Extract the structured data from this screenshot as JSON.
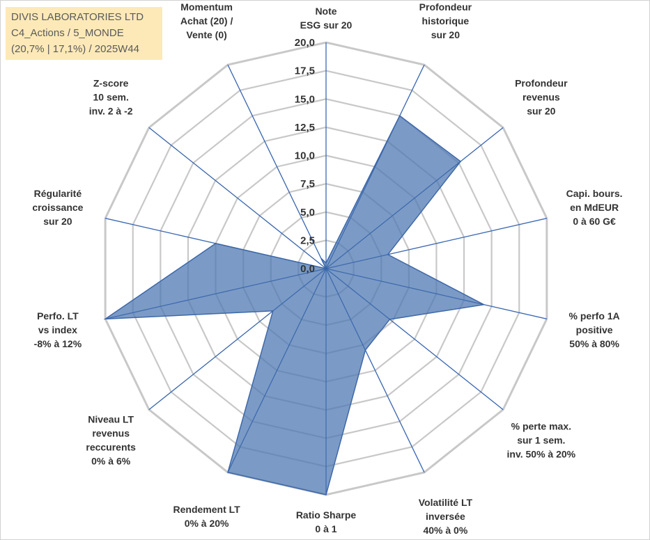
{
  "header": {
    "line1": "DIVIS LABORATORIES LTD",
    "line2": "C4_Actions / 5_MONDE",
    "line3": "(20,7% | 17,1%) / 2025W44"
  },
  "chart_data": {
    "type": "radar",
    "title": "DIVIS LABORATORIES LTD",
    "rmin": 0,
    "rmax": 20,
    "ticks": [
      "0,0",
      "2,5",
      "5,0",
      "7,5",
      "10,0",
      "12,5",
      "15,0",
      "17,5",
      "20,0"
    ],
    "axes": [
      {
        "label": [
          "Note",
          "ESG sur 20"
        ],
        "value": 0.5
      },
      {
        "label": [
          "Profondeur",
          "historique",
          "sur 20"
        ],
        "value": 15.0
      },
      {
        "label": [
          "Profondeur",
          "revenus",
          "sur 20"
        ],
        "value": 15.2
      },
      {
        "label": [
          "Capi. bours.",
          "en MdEUR",
          "0 à 60 G€"
        ],
        "value": 5.6
      },
      {
        "label": [
          "% perfo 1A",
          "positive",
          "50% à 80%"
        ],
        "value": 14.3
      },
      {
        "label": [
          "% perte max.",
          "sur 1 sem.",
          "inv. 50% à 20%"
        ],
        "value": 7.2
      },
      {
        "label": [
          "Volatilité LT",
          "inversée",
          "40% à 0%"
        ],
        "value": 8.0
      },
      {
        "label": [
          "Ratio Sharpe",
          "0 à 1"
        ],
        "value": 20.0
      },
      {
        "label": [
          "Rendement LT",
          "0% à 20%"
        ],
        "value": 20.0
      },
      {
        "label": [
          "Niveau LT",
          "revenus",
          "reccurents",
          "0% à 6%"
        ],
        "value": 6.0
      },
      {
        "label": [
          "Perfo. LT",
          "vs index",
          "-8% à 12%"
        ],
        "value": 20.0
      },
      {
        "label": [
          "Régularité",
          "croissance",
          "sur 20"
        ],
        "value": 10.0
      },
      {
        "label": [
          "Z-score",
          "10 sem.",
          "inv. 2 à -2"
        ],
        "value": 0.0
      },
      {
        "label": [
          "Momentum",
          "Achat (20) /",
          "Vente (0)"
        ],
        "value": 1.0
      }
    ],
    "series": [
      {
        "name": "DIVIS LABORATORIES LTD",
        "color": "#4f79b3"
      }
    ]
  }
}
